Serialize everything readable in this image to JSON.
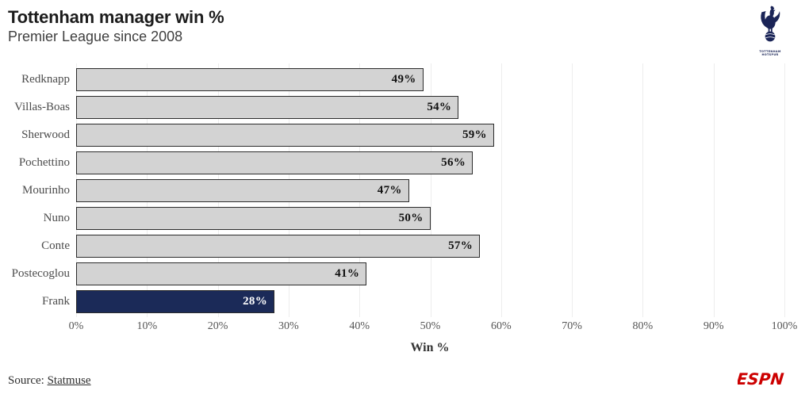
{
  "header": {
    "title": "Tottenham manager win %",
    "subtitle": "Premier League since 2008"
  },
  "logos": {
    "club_crest": "tottenham-hotspur-crest",
    "club_crest_text": "TOTTENHAM\nHOTSPUR",
    "brand": "ESPN"
  },
  "chart_data": {
    "type": "bar",
    "orientation": "horizontal",
    "title": "Tottenham manager win %",
    "subtitle": "Premier League since 2008",
    "categories": [
      "Redknapp",
      "Villas-Boas",
      "Sherwood",
      "Pochettino",
      "Mourinho",
      "Nuno",
      "Conte",
      "Postecoglou",
      "Frank"
    ],
    "values": [
      49,
      54,
      59,
      56,
      47,
      50,
      57,
      41,
      28
    ],
    "value_labels": [
      "49%",
      "54%",
      "59%",
      "56%",
      "47%",
      "50%",
      "57%",
      "41%",
      "28%"
    ],
    "highlight_index": 8,
    "xlabel": "Win %",
    "x_ticks": [
      "0%",
      "10%",
      "20%",
      "30%",
      "40%",
      "50%",
      "60%",
      "70%",
      "80%",
      "90%",
      "100%"
    ],
    "xlim": [
      0,
      100
    ],
    "grid": true,
    "legend": "none",
    "colors": {
      "bar_fill": "#d3d3d3",
      "bar_border": "#2b2b2b",
      "highlight_fill": "#1b2a58",
      "highlight_text": "#ffffff",
      "value_text": "#111111",
      "gridline": "#ededed",
      "crest_navy": "#1a2457",
      "brand_red": "#cc0000"
    }
  },
  "footer": {
    "source_prefix": "Source: ",
    "source_link": "Statmuse"
  }
}
